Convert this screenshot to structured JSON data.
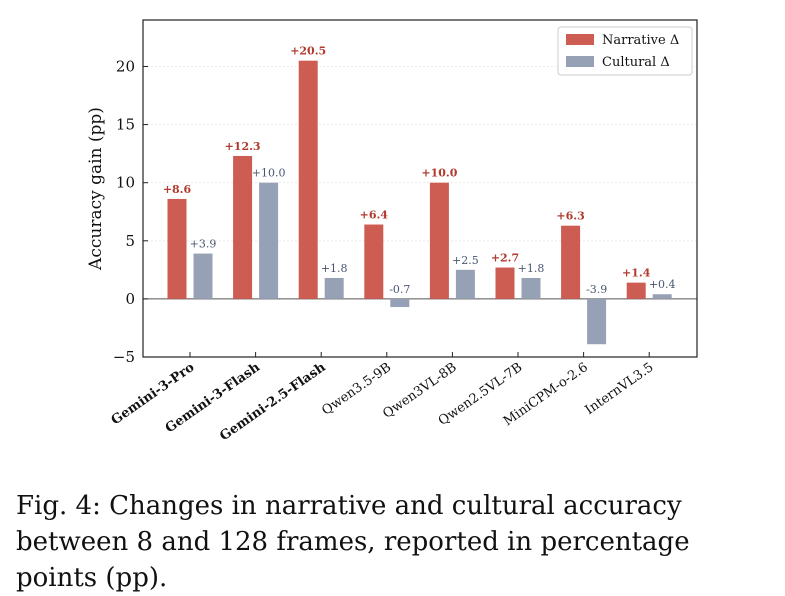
{
  "figure": {
    "caption": "Fig. 4: Changes in narrative and cultural accuracy between 8 and 128 frames, reported in percentage points (pp)."
  },
  "colors": {
    "narrative": "#cd5c52",
    "cultural": "#97a1b5",
    "narrative_label": "#b03a2e",
    "cultural_label": "#4a5670"
  },
  "chart_data": {
    "type": "bar",
    "ylabel": "Accuracy gain (pp)",
    "ylim": [
      -5,
      24
    ],
    "yticks": [
      -5,
      0,
      5,
      10,
      15,
      20
    ],
    "ytick_labels": [
      "−5",
      "0",
      "5",
      "10",
      "15",
      "20"
    ],
    "grid": true,
    "legend_position": "top-right",
    "categories": [
      "Gemini-3-Pro",
      "Gemini-3-Flash",
      "Gemini-2.5-Flash",
      "Qwen3.5-9B",
      "Qwen3VL-8B",
      "Qwen2.5VL-7B",
      "MiniCPM-o-2.6",
      "InternVL3.5"
    ],
    "bold_categories": [
      "Gemini-3-Pro",
      "Gemini-3-Flash",
      "Gemini-2.5-Flash"
    ],
    "series": [
      {
        "name": "Narrative Δ",
        "values": [
          8.6,
          12.3,
          20.5,
          6.4,
          10.0,
          2.7,
          6.3,
          1.4
        ],
        "labels": [
          "+8.6",
          "+12.3",
          "+20.5",
          "+6.4",
          "+10.0",
          "+2.7",
          "+6.3",
          "+1.4"
        ]
      },
      {
        "name": "Cultural Δ",
        "values": [
          3.9,
          10.0,
          1.8,
          -0.7,
          2.5,
          1.8,
          -3.9,
          0.4
        ],
        "labels": [
          "+3.9",
          "+10.0",
          "+1.8",
          "-0.7",
          "+2.5",
          "+1.8",
          "-3.9",
          "+0.4"
        ]
      }
    ]
  }
}
